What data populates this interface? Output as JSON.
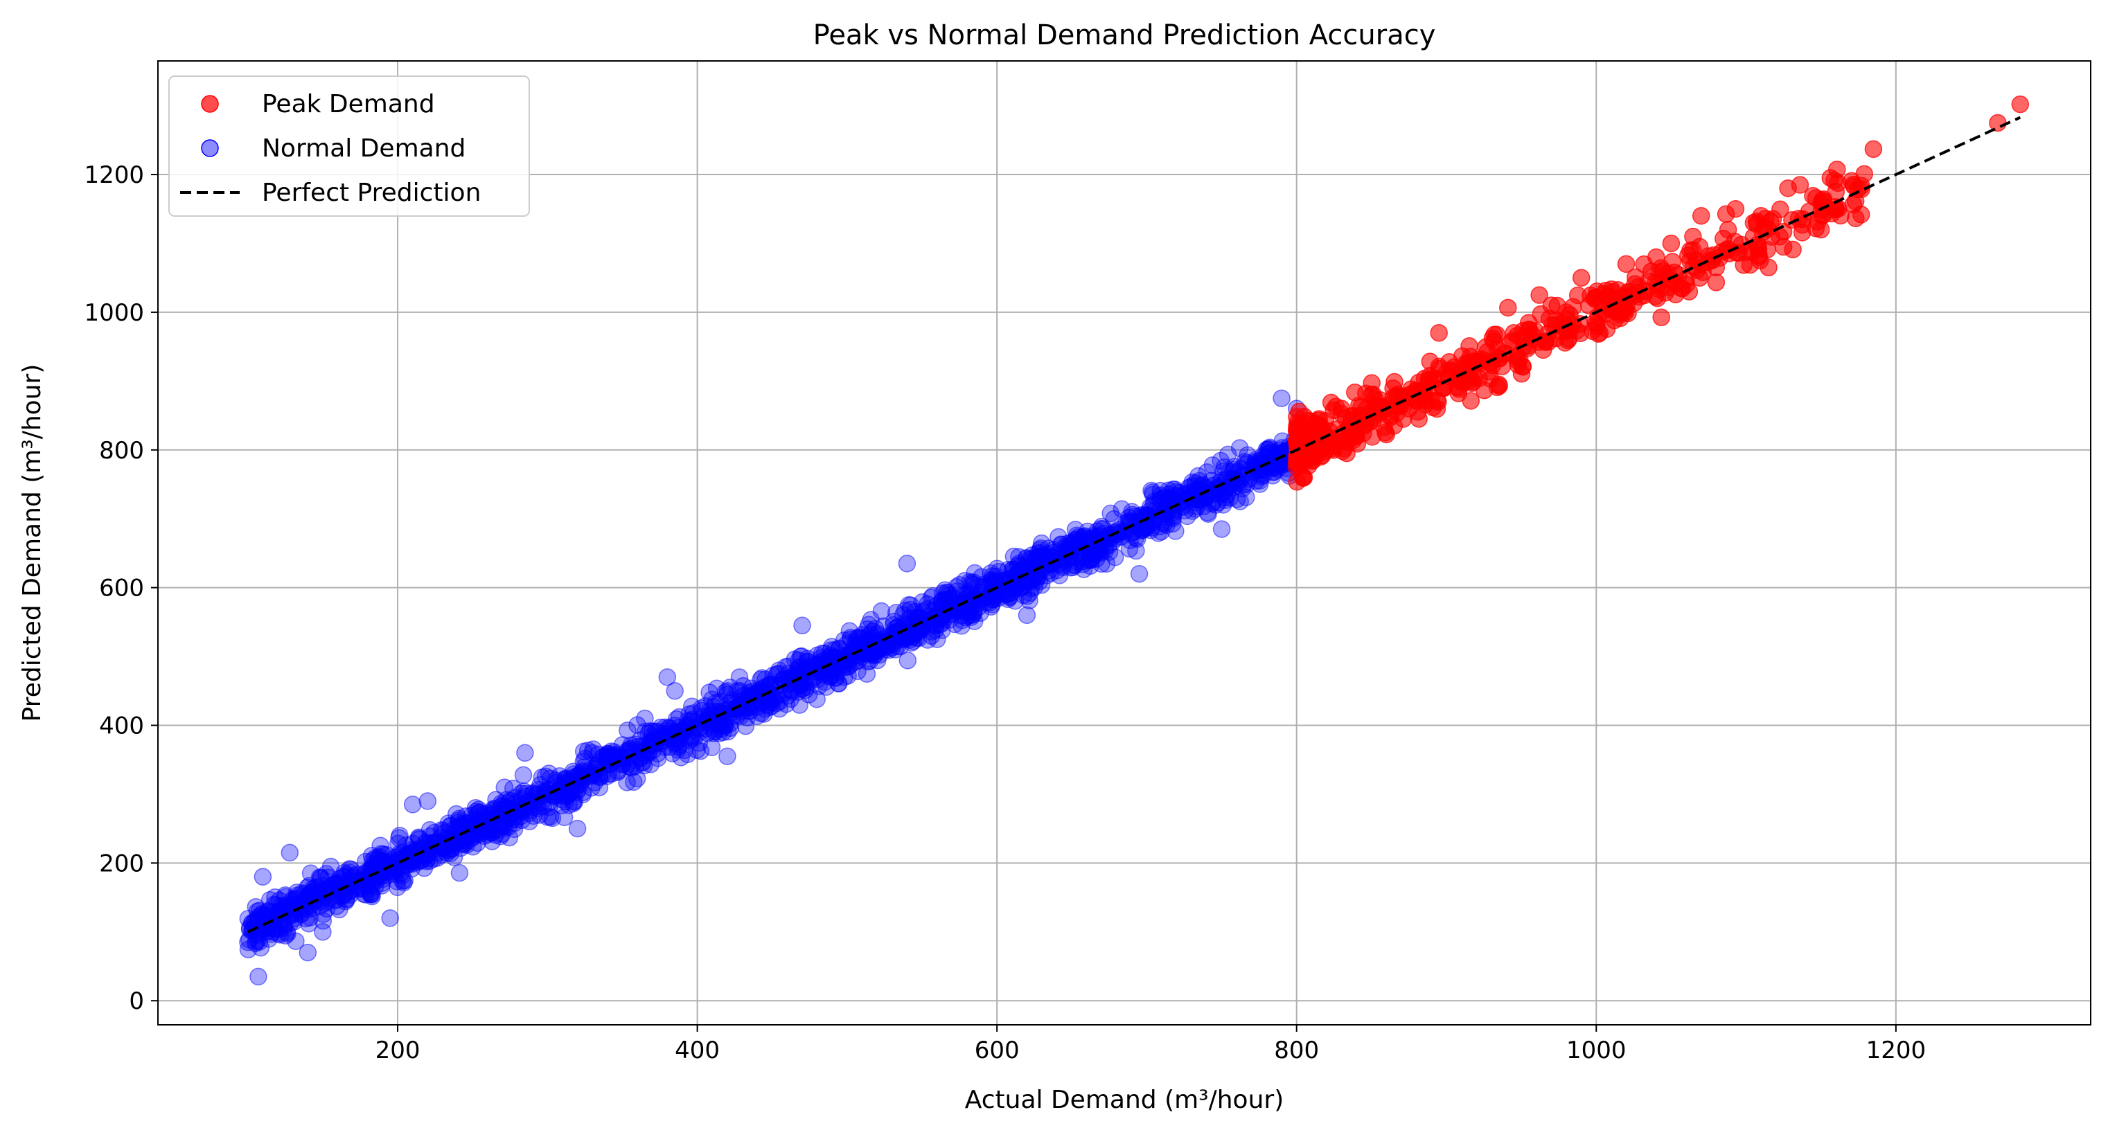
{
  "chart_data": {
    "type": "scatter",
    "title": "Peak vs Normal Demand Prediction Accuracy",
    "xlabel": "Actual Demand (m³/hour)",
    "ylabel": "Predicted Demand (m³/hour)",
    "xlim": [
      40,
      1330
    ],
    "ylim": [
      -35,
      1365
    ],
    "xticks": [
      200,
      400,
      600,
      800,
      1000,
      1200
    ],
    "xtick_labels": [
      "200",
      "400",
      "600",
      "800",
      "1000",
      "1200"
    ],
    "yticks": [
      0,
      200,
      400,
      600,
      800,
      1000,
      1200
    ],
    "ytick_labels": [
      "0",
      "200",
      "400",
      "600",
      "800",
      "1000",
      "1200"
    ],
    "grid": true,
    "legend_position": "top-left",
    "series": [
      {
        "name": "Peak Demand",
        "color": "#ff0000",
        "alpha": 0.6,
        "x_range": [
          800,
          1283
        ],
        "points": [
          [
            1283,
            1302
          ],
          [
            1268,
            1275
          ],
          [
            1185,
            1237
          ],
          [
            1172,
            1183
          ],
          [
            1160,
            1175
          ],
          [
            1150,
            1120
          ],
          [
            1136,
            1185
          ],
          [
            1128,
            1180
          ],
          [
            1125,
            1095
          ],
          [
            1115,
            1065
          ],
          [
            1110,
            1140
          ],
          [
            1105,
            1130
          ],
          [
            1093,
            1150
          ],
          [
            1088,
            1120
          ],
          [
            1080,
            1065
          ],
          [
            1070,
            1140
          ],
          [
            1062,
            1030
          ],
          [
            1050,
            1100
          ],
          [
            1040,
            1080
          ],
          [
            1035,
            1045
          ],
          [
            1020,
            1070
          ],
          [
            1010,
            1020
          ],
          [
            990,
            1050
          ],
          [
            980,
            1000
          ],
          [
            970,
            1010
          ],
          [
            962,
            1025
          ],
          [
            955,
            975
          ],
          [
            945,
            970
          ],
          [
            935,
            895
          ],
          [
            925,
            930
          ],
          [
            915,
            900
          ],
          [
            905,
            920
          ],
          [
            895,
            970
          ],
          [
            885,
            880
          ],
          [
            875,
            860
          ],
          [
            865,
            835
          ],
          [
            850,
            880
          ],
          [
            840,
            820
          ],
          [
            830,
            860
          ],
          [
            815,
            845
          ],
          [
            805,
            760
          ]
        ],
        "scatter_sd": 28
      },
      {
        "name": "Normal Demand",
        "color": "#0000ff",
        "alpha": 0.35,
        "x_range": [
          100,
          800
        ],
        "points": [
          [
            107,
            35
          ],
          [
            110,
            180
          ],
          [
            128,
            215
          ],
          [
            140,
            70
          ],
          [
            150,
            100
          ],
          [
            195,
            120
          ],
          [
            210,
            285
          ],
          [
            220,
            290
          ],
          [
            285,
            360
          ],
          [
            320,
            250
          ],
          [
            365,
            410
          ],
          [
            380,
            470
          ],
          [
            385,
            450
          ],
          [
            420,
            355
          ],
          [
            470,
            545
          ],
          [
            540,
            635
          ],
          [
            560,
            525
          ],
          [
            620,
            560
          ],
          [
            695,
            620
          ],
          [
            750,
            685
          ],
          [
            790,
            875
          ],
          [
            800,
            860
          ]
        ],
        "scatter_sd": 22
      },
      {
        "name": "Perfect Prediction",
        "type": "line",
        "style": "dashed",
        "color": "#000000",
        "x": [
          100,
          1283
        ],
        "y": [
          100,
          1283
        ]
      }
    ]
  }
}
